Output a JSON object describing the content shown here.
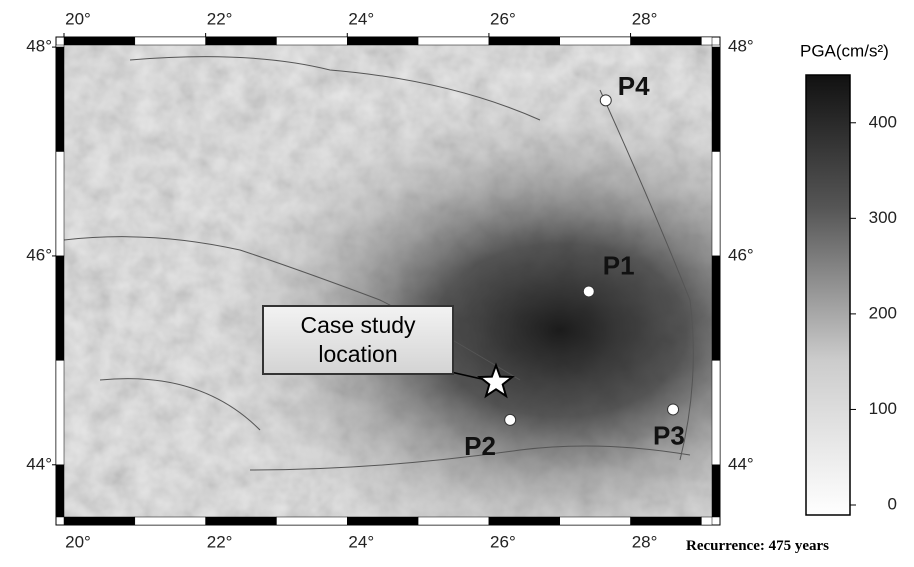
{
  "map": {
    "xlim": [
      20,
      29.15
    ],
    "ylim": [
      43.5,
      48.02
    ],
    "xticks": [
      {
        "value": 20,
        "label": "20°"
      },
      {
        "value": 22,
        "label": "22°"
      },
      {
        "value": 24,
        "label": "24°"
      },
      {
        "value": 26,
        "label": "26°"
      },
      {
        "value": 28,
        "label": "28°"
      }
    ],
    "yticks": [
      {
        "value": 44,
        "label": "44°"
      },
      {
        "value": 46,
        "label": "46°"
      },
      {
        "value": 48,
        "label": "48°"
      }
    ],
    "points": [
      {
        "label": "P1",
        "lon": 27.41,
        "lat": 45.66
      },
      {
        "label": "P2",
        "lon": 26.3,
        "lat": 44.43
      },
      {
        "label": "P3",
        "lon": 28.6,
        "lat": 44.53
      },
      {
        "label": "P4",
        "lon": 27.65,
        "lat": 47.49
      }
    ],
    "site": {
      "label": "Case study location",
      "lon": 26.1,
      "lat": 44.79
    }
  },
  "colorbar": {
    "label": "PGA(cm/s²)",
    "ylim": [
      0,
      450
    ],
    "yticks": [
      0,
      100,
      200,
      300,
      400
    ]
  },
  "footer": "Recurrence: 475 years"
}
